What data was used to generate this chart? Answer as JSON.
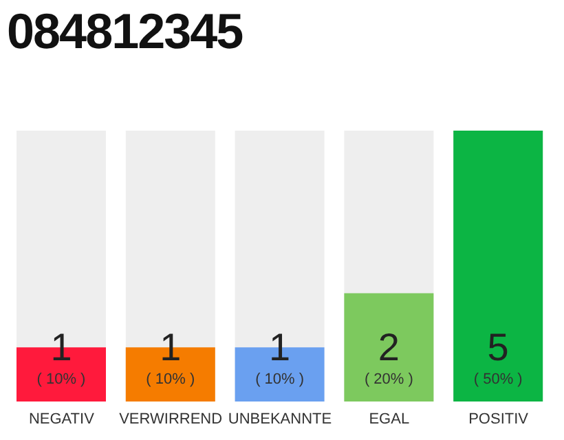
{
  "chart_data": {
    "type": "bar",
    "title": "084812345",
    "categories": [
      "NEGATIV",
      "VERWIRREND",
      "UNBEKANNTE",
      "EGAL",
      "POSITIV"
    ],
    "values": [
      1,
      1,
      1,
      2,
      5
    ],
    "colors": [
      "#ff1a3c",
      "#f57c00",
      "#6aa0f0",
      "#7dc95e",
      "#0cb544"
    ],
    "data_labels": true,
    "annotations": [
      "( 10% )",
      "( 10% )",
      "( 10% )",
      "( 20% )",
      "( 50% )"
    ],
    "grid": false,
    "legend": false
  }
}
